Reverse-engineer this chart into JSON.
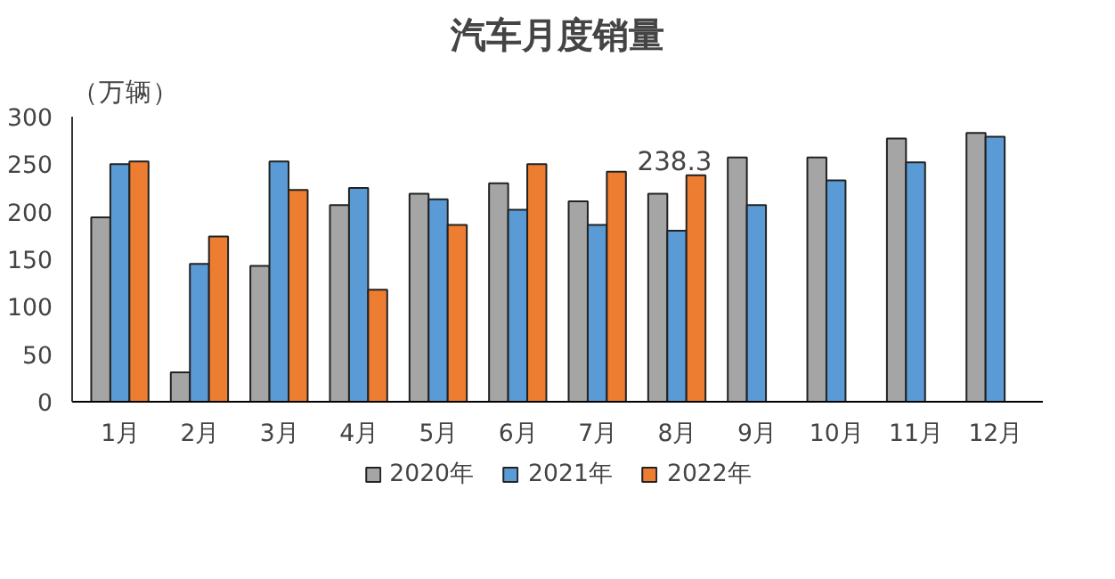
{
  "chart_data": {
    "type": "bar",
    "title": "汽车月度销量",
    "ylabel": "（万辆）",
    "categories": [
      "1月",
      "2月",
      "3月",
      "4月",
      "5月",
      "6月",
      "7月",
      "8月",
      "9月",
      "10月",
      "11月",
      "12月"
    ],
    "series": [
      {
        "name": "2020年",
        "color": "#a5a5a5",
        "values": [
          194,
          31,
          143,
          207,
          219,
          230,
          211,
          219,
          257,
          257,
          277,
          283
        ]
      },
      {
        "name": "2021年",
        "color": "#5b9bd5",
        "values": [
          250,
          145,
          253,
          225,
          213,
          202,
          186,
          180,
          207,
          233,
          252,
          279
        ]
      },
      {
        "name": "2022年",
        "color": "#ed7d31",
        "values": [
          253,
          174,
          223,
          118,
          186,
          250,
          242,
          238.3,
          null,
          null,
          null,
          null
        ],
        "value_labels": [
          null,
          null,
          null,
          null,
          null,
          null,
          null,
          "238.3",
          null,
          null,
          null,
          null
        ]
      }
    ],
    "ylim": [
      0,
      300
    ],
    "yticks": [
      0,
      50,
      100,
      150,
      200,
      250,
      300
    ],
    "grid": false,
    "legend": "bottom"
  }
}
